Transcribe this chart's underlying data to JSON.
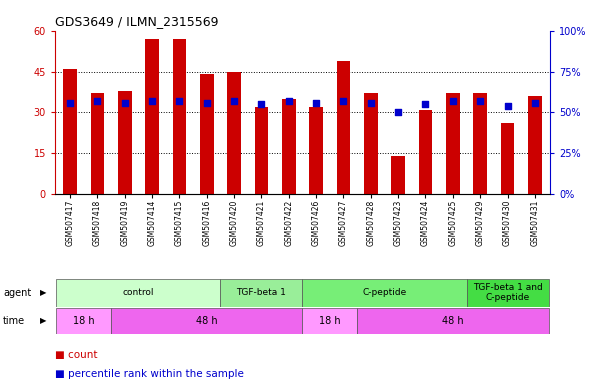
{
  "title": "GDS3649 / ILMN_2315569",
  "samples": [
    "GSM507417",
    "GSM507418",
    "GSM507419",
    "GSM507414",
    "GSM507415",
    "GSM507416",
    "GSM507420",
    "GSM507421",
    "GSM507422",
    "GSM507426",
    "GSM507427",
    "GSM507428",
    "GSM507423",
    "GSM507424",
    "GSM507425",
    "GSM507429",
    "GSM507430",
    "GSM507431"
  ],
  "counts": [
    46,
    37,
    38,
    57,
    57,
    44,
    45,
    32,
    35,
    32,
    49,
    37,
    14,
    31,
    37,
    37,
    26,
    36
  ],
  "percentile_ranks": [
    56,
    57,
    56,
    57,
    57,
    56,
    57,
    55,
    57,
    56,
    57,
    56,
    50,
    55,
    57,
    57,
    54,
    56
  ],
  "bar_color": "#CC0000",
  "dot_color": "#0000CC",
  "ylim_left": [
    0,
    60
  ],
  "ylim_right": [
    0,
    100
  ],
  "yticks_left": [
    0,
    15,
    30,
    45,
    60
  ],
  "yticks_right": [
    0,
    25,
    50,
    75,
    100
  ],
  "ytick_labels_left": [
    "0",
    "15",
    "30",
    "45",
    "60"
  ],
  "ytick_labels_right": [
    "0%",
    "25%",
    "50%",
    "75%",
    "100%"
  ],
  "agent_groups": [
    {
      "label": "control",
      "start": 0,
      "end": 6
    },
    {
      "label": "TGF-beta 1",
      "start": 6,
      "end": 9
    },
    {
      "label": "C-peptide",
      "start": 9,
      "end": 15
    },
    {
      "label": "TGF-beta 1 and\nC-peptide",
      "start": 15,
      "end": 18
    }
  ],
  "agent_colors": [
    "#CCFFCC",
    "#99EE99",
    "#77EE77",
    "#44DD44"
  ],
  "time_groups": [
    {
      "label": "18 h",
      "start": 0,
      "end": 2
    },
    {
      "label": "48 h",
      "start": 2,
      "end": 9
    },
    {
      "label": "18 h",
      "start": 9,
      "end": 11
    },
    {
      "label": "48 h",
      "start": 11,
      "end": 18
    }
  ],
  "time_colors_map": {
    "18 h": "#FF99FF",
    "48 h": "#EE66EE"
  },
  "bar_width": 0.5,
  "dot_size": 18,
  "left_ylabel_color": "#CC0000",
  "right_ylabel_color": "#0000CC",
  "background_color": "#FFFFFF"
}
